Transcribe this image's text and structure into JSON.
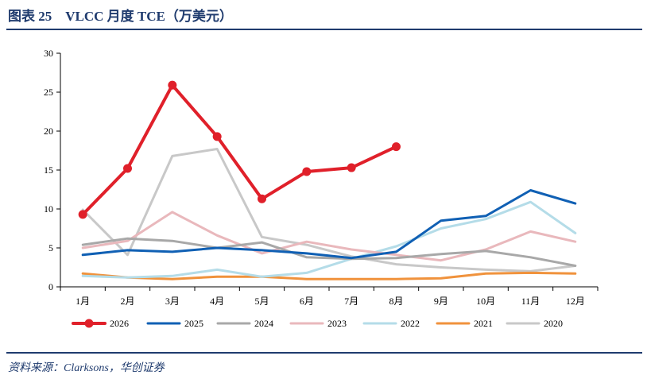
{
  "header": {
    "title": "图表 25　VLCC 月度 TCE（万美元）"
  },
  "footer": {
    "source": "资料来源：Clarksons，华创证券"
  },
  "colors": {
    "accent": "#1f3b6e"
  },
  "chart_data": {
    "type": "line",
    "title": "",
    "xlabel": "",
    "ylabel": "",
    "ylim": [
      0,
      30
    ],
    "yticks": [
      0,
      5,
      10,
      15,
      20,
      25,
      30
    ],
    "grid": false,
    "legend_position": "bottom",
    "categories": [
      "1月",
      "2月",
      "3月",
      "4月",
      "5月",
      "6月",
      "7月",
      "8月",
      "9月",
      "10月",
      "11月",
      "12月"
    ],
    "series": [
      {
        "name": "2026",
        "color": "#e0202a",
        "markers": true,
        "values": [
          9.3,
          15.2,
          25.9,
          19.3,
          11.3,
          14.8,
          15.3,
          18.0,
          null,
          null,
          null,
          null
        ]
      },
      {
        "name": "2025",
        "color": "#1060b4",
        "markers": false,
        "values": [
          4.1,
          4.7,
          4.5,
          5.0,
          4.7,
          4.3,
          3.7,
          4.5,
          8.5,
          9.1,
          12.4,
          10.7
        ]
      },
      {
        "name": "2024",
        "color": "#a8a8a8",
        "markers": false,
        "values": [
          5.4,
          6.2,
          5.9,
          5.0,
          5.7,
          3.8,
          3.6,
          3.7,
          4.2,
          4.6,
          3.8,
          2.7
        ]
      },
      {
        "name": "2023",
        "color": "#e9b8bc",
        "markers": false,
        "values": [
          5.0,
          5.9,
          9.6,
          6.6,
          4.3,
          5.8,
          4.8,
          4.1,
          3.4,
          4.8,
          7.1,
          5.8
        ]
      },
      {
        "name": "2022",
        "color": "#b4dce8",
        "markers": false,
        "values": [
          1.4,
          1.2,
          1.4,
          2.2,
          1.3,
          1.8,
          3.6,
          5.2,
          7.5,
          8.7,
          10.9,
          6.9
        ]
      },
      {
        "name": "2021",
        "color": "#f0923c",
        "markers": false,
        "values": [
          1.7,
          1.2,
          1.0,
          1.3,
          1.3,
          1.0,
          1.0,
          1.0,
          1.1,
          1.7,
          1.8,
          1.7
        ]
      },
      {
        "name": "2020",
        "color": "#c8c8c8",
        "markers": false,
        "values": [
          9.9,
          4.1,
          16.8,
          17.7,
          6.4,
          5.4,
          3.9,
          2.9,
          2.5,
          2.2,
          2.0,
          2.7
        ]
      }
    ]
  }
}
